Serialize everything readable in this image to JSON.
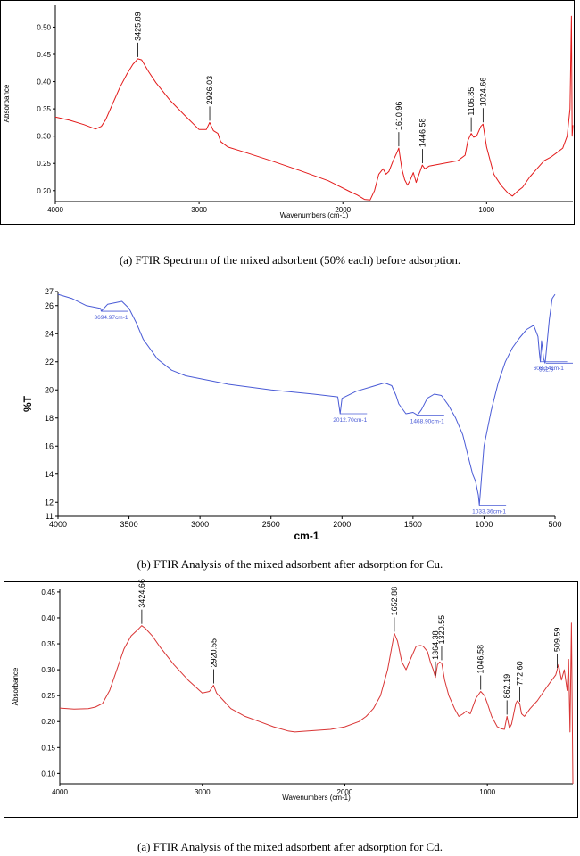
{
  "chart_data": [
    {
      "type": "line",
      "caption": "(a)   FTIR Spectrum of the mixed adsorbent (50% each) before adsorption.",
      "xlabel": "Wavenumbers (cm-1)",
      "ylabel": "Absorbance",
      "xlim": [
        4000,
        400
      ],
      "ylim": [
        0.18,
        0.54
      ],
      "x_ticks": [
        4000,
        3000,
        2000,
        1000
      ],
      "y_ticks": [
        0.2,
        0.25,
        0.3,
        0.35,
        0.4,
        0.45,
        0.5
      ],
      "y_tick_labels": [
        "0.20",
        "0.25",
        "0.30",
        "0.35",
        "0.40",
        "0.45",
        "0.50"
      ],
      "color": "#e31a1a",
      "series": [
        {
          "x": [
            4000,
            3900,
            3800,
            3720,
            3680,
            3650,
            3600,
            3550,
            3500,
            3460,
            3426,
            3400,
            3350,
            3300,
            3200,
            3100,
            3000,
            2950,
            2926,
            2900,
            2870,
            2850,
            2800,
            2700,
            2500,
            2300,
            2100,
            1950,
            1900,
            1850,
            1810,
            1780,
            1750,
            1720,
            1700,
            1680,
            1650,
            1620,
            1611,
            1590,
            1570,
            1550,
            1530,
            1510,
            1490,
            1470,
            1447,
            1430,
            1400,
            1300,
            1200,
            1150,
            1130,
            1107,
            1090,
            1070,
            1040,
            1025,
            1000,
            950,
            900,
            850,
            820,
            800,
            780,
            750,
            700,
            650,
            600,
            550,
            500,
            470,
            440,
            420,
            410,
            405,
            400
          ],
          "y": [
            0.335,
            0.329,
            0.321,
            0.313,
            0.318,
            0.33,
            0.36,
            0.39,
            0.415,
            0.432,
            0.442,
            0.44,
            0.418,
            0.398,
            0.365,
            0.338,
            0.312,
            0.312,
            0.325,
            0.31,
            0.305,
            0.29,
            0.28,
            0.272,
            0.255,
            0.237,
            0.218,
            0.198,
            0.192,
            0.184,
            0.183,
            0.2,
            0.23,
            0.24,
            0.23,
            0.235,
            0.255,
            0.272,
            0.278,
            0.24,
            0.22,
            0.21,
            0.22,
            0.233,
            0.215,
            0.23,
            0.247,
            0.24,
            0.245,
            0.25,
            0.255,
            0.265,
            0.292,
            0.305,
            0.298,
            0.3,
            0.318,
            0.322,
            0.28,
            0.23,
            0.21,
            0.195,
            0.19,
            0.195,
            0.2,
            0.206,
            0.225,
            0.24,
            0.255,
            0.262,
            0.272,
            0.278,
            0.3,
            0.35,
            0.52,
            0.3,
            0.32
          ]
        }
      ],
      "annotations": [
        {
          "x": 3425.89,
          "y": 0.442,
          "label": "3425.89"
        },
        {
          "x": 2926.03,
          "y": 0.325,
          "label": "2926.03"
        },
        {
          "x": 1610.96,
          "y": 0.278,
          "label": "1610.96"
        },
        {
          "x": 1446.58,
          "y": 0.247,
          "label": "1446.58"
        },
        {
          "x": 1106.85,
          "y": 0.305,
          "label": "1106.85"
        },
        {
          "x": 1024.66,
          "y": 0.322,
          "label": "1024.66"
        }
      ]
    },
    {
      "type": "line",
      "caption": "(b)   FTIR Analysis of the mixed adsorbent after adsorption for Cu.",
      "xlabel": "cm-1",
      "ylabel": "%T",
      "xlim": [
        4000,
        500
      ],
      "ylim": [
        11,
        27
      ],
      "x_ticks": [
        4000,
        3500,
        3000,
        2500,
        2000,
        1500,
        1000,
        500
      ],
      "y_ticks": [
        11,
        12,
        14,
        16,
        18,
        20,
        22,
        24,
        26,
        27
      ],
      "y_tick_labels": [
        "11",
        "12",
        "14",
        "16",
        "18",
        "20",
        "22",
        "24",
        "26",
        "27"
      ],
      "color": "#4a5bd6",
      "series": [
        {
          "x": [
            4000,
            3900,
            3800,
            3700,
            3695,
            3650,
            3600,
            3550,
            3500,
            3450,
            3400,
            3300,
            3200,
            3100,
            3000,
            2900,
            2800,
            2500,
            2200,
            2030,
            2013,
            2000,
            1900,
            1800,
            1700,
            1650,
            1620,
            1600,
            1550,
            1500,
            1469,
            1440,
            1400,
            1350,
            1300,
            1250,
            1200,
            1150,
            1100,
            1080,
            1060,
            1040,
            1033,
            1000,
            950,
            900,
            850,
            800,
            750,
            700,
            650,
            620,
            610,
            603,
            595,
            580,
            570,
            563,
            540,
            520,
            500
          ],
          "y": [
            26.8,
            26.5,
            26.0,
            25.8,
            25.6,
            26.1,
            26.2,
            26.3,
            25.8,
            24.8,
            23.6,
            22.2,
            21.4,
            21.0,
            20.8,
            20.6,
            20.4,
            20.0,
            19.7,
            19.5,
            18.3,
            19.4,
            19.9,
            20.2,
            20.5,
            20.3,
            19.6,
            19.0,
            18.3,
            18.4,
            18.2,
            18.6,
            19.4,
            19.7,
            19.6,
            18.9,
            18.0,
            16.8,
            14.8,
            14.0,
            13.5,
            12.5,
            11.8,
            16.0,
            18.5,
            20.5,
            22.0,
            23.0,
            23.7,
            24.3,
            24.6,
            23.8,
            22.6,
            22.0,
            23.5,
            22.2,
            21.9,
            22.6,
            25.0,
            26.5,
            26.8
          ]
        }
      ],
      "annotations": [
        {
          "x": 3694.97,
          "y": 25.6,
          "label": "3694.97cm-1"
        },
        {
          "x": 2012.7,
          "y": 18.3,
          "label": "2012.70cm-1"
        },
        {
          "x": 1468.9,
          "y": 18.2,
          "label": "1468.90cm-1"
        },
        {
          "x": 1033.36,
          "y": 11.8,
          "label": "1033.36cm-1"
        },
        {
          "x": 603.14,
          "y": 22.0,
          "label": "603.14cm-1"
        },
        {
          "x": 562.9,
          "y": 21.9,
          "label": "562.9"
        }
      ]
    },
    {
      "type": "line",
      "caption": "(a)   FTIR Analysis of the mixed adsorbent after adsorption for Cd.",
      "xlabel": "Wavenumbers (cm-1)",
      "ylabel": "Absorbance",
      "xlim": [
        4000,
        400
      ],
      "ylim": [
        0.08,
        0.455
      ],
      "x_ticks": [
        4000,
        3000,
        2000,
        1000
      ],
      "y_ticks": [
        0.1,
        0.15,
        0.2,
        0.25,
        0.3,
        0.35,
        0.4,
        0.45
      ],
      "y_tick_labels": [
        "0.10",
        "0.15",
        "0.20",
        "0.25",
        "0.30",
        "0.35",
        "0.40",
        "0.45"
      ],
      "color": "#d93535",
      "series": [
        {
          "x": [
            4000,
            3900,
            3800,
            3750,
            3700,
            3650,
            3600,
            3550,
            3500,
            3450,
            3425,
            3400,
            3350,
            3300,
            3200,
            3100,
            3000,
            2950,
            2921,
            2900,
            2850,
            2800,
            2700,
            2600,
            2500,
            2400,
            2350,
            2300,
            2200,
            2100,
            2000,
            1900,
            1850,
            1800,
            1750,
            1700,
            1680,
            1653,
            1630,
            1600,
            1570,
            1540,
            1500,
            1470,
            1450,
            1420,
            1400,
            1380,
            1364,
            1350,
            1335,
            1320,
            1300,
            1270,
            1230,
            1200,
            1170,
            1150,
            1120,
            1100,
            1080,
            1047,
            1020,
            1000,
            970,
            930,
            900,
            880,
            862,
            845,
            830,
            800,
            790,
            773,
            760,
            740,
            700,
            650,
            600,
            560,
            520,
            510,
            500,
            480,
            460,
            440,
            430,
            420,
            410,
            400
          ],
          "y": [
            0.226,
            0.224,
            0.225,
            0.228,
            0.235,
            0.26,
            0.3,
            0.34,
            0.365,
            0.378,
            0.385,
            0.38,
            0.365,
            0.345,
            0.31,
            0.28,
            0.255,
            0.258,
            0.27,
            0.255,
            0.24,
            0.225,
            0.21,
            0.2,
            0.19,
            0.182,
            0.18,
            0.181,
            0.183,
            0.185,
            0.19,
            0.2,
            0.21,
            0.225,
            0.25,
            0.3,
            0.33,
            0.37,
            0.355,
            0.315,
            0.3,
            0.32,
            0.345,
            0.347,
            0.345,
            0.335,
            0.315,
            0.3,
            0.285,
            0.31,
            0.315,
            0.312,
            0.28,
            0.25,
            0.225,
            0.21,
            0.215,
            0.22,
            0.215,
            0.23,
            0.245,
            0.258,
            0.25,
            0.235,
            0.21,
            0.19,
            0.186,
            0.185,
            0.21,
            0.187,
            0.195,
            0.235,
            0.24,
            0.235,
            0.215,
            0.21,
            0.225,
            0.24,
            0.26,
            0.275,
            0.29,
            0.3,
            0.31,
            0.28,
            0.3,
            0.26,
            0.32,
            0.18,
            0.39,
            0.08
          ]
        }
      ],
      "annotations": [
        {
          "x": 3424.66,
          "y": 0.385,
          "label": "3424.66"
        },
        {
          "x": 2920.55,
          "y": 0.27,
          "label": "2920.55"
        },
        {
          "x": 1652.88,
          "y": 0.37,
          "label": "1652.88"
        },
        {
          "x": 1364.38,
          "y": 0.285,
          "label": "1364.38"
        },
        {
          "x": 1320.55,
          "y": 0.315,
          "label": "1320.55"
        },
        {
          "x": 1046.58,
          "y": 0.258,
          "label": "1046.58"
        },
        {
          "x": 862.19,
          "y": 0.21,
          "label": "862.19"
        },
        {
          "x": 772.6,
          "y": 0.235,
          "label": "772.60"
        },
        {
          "x": 509.59,
          "y": 0.3,
          "label": "509.59"
        }
      ]
    }
  ]
}
